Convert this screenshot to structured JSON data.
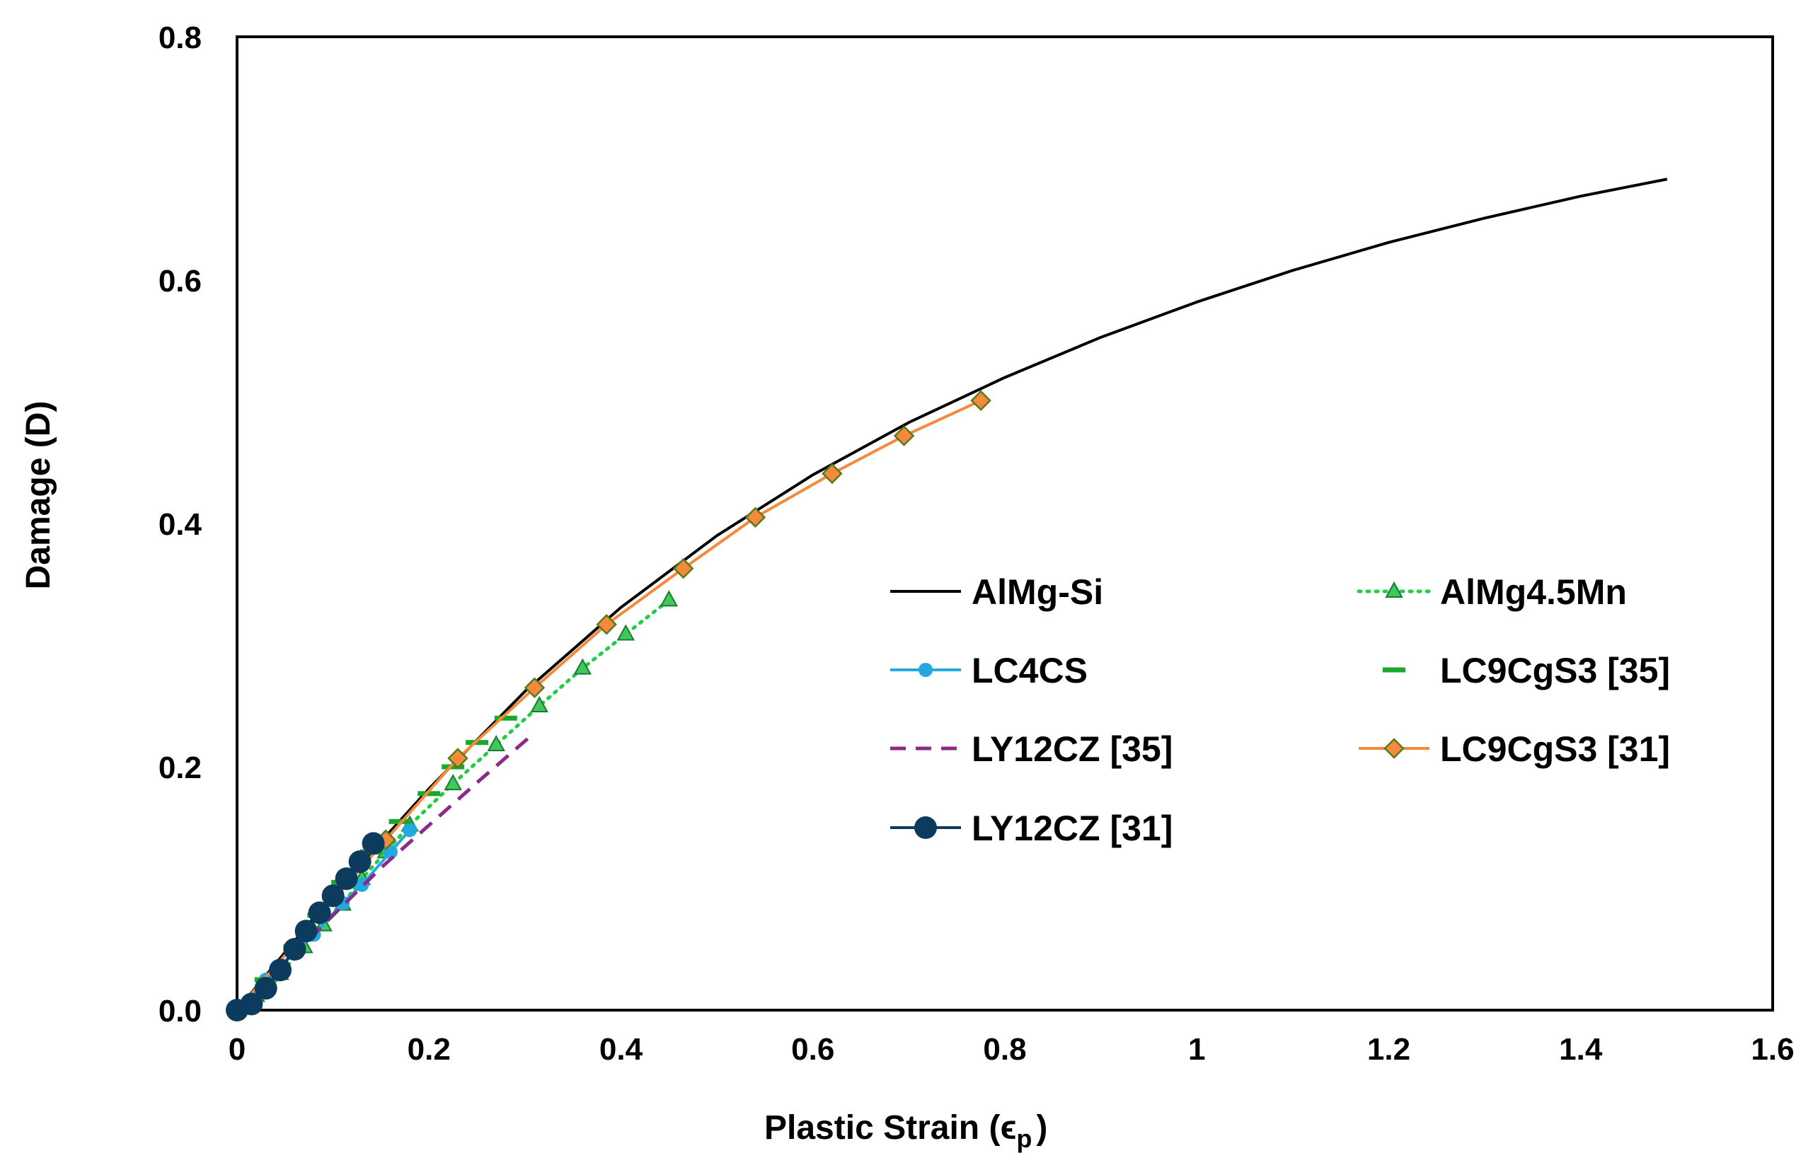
{
  "chart_data": {
    "type": "line",
    "title": "",
    "xlabel": "Plastic Strain (ϵ",
    "xlabel_sub": "p",
    "xlabel_close": ")",
    "ylabel": "Damage (D)",
    "xlim": [
      0,
      1.6
    ],
    "ylim": [
      0,
      0.8
    ],
    "xticks": [
      0,
      0.2,
      0.4,
      0.6,
      0.8,
      1,
      1.2,
      1.4,
      1.6
    ],
    "xtick_labels": [
      "0",
      "0.2",
      "0.4",
      "0.6",
      "0.8",
      "1",
      "1.2",
      "1.4",
      "1.6"
    ],
    "yticks": [
      0.0,
      0.2,
      0.4,
      0.6,
      0.8
    ],
    "ytick_labels": [
      "0.0",
      "0.2",
      "0.4",
      "0.6",
      "0.8"
    ],
    "grid": false,
    "legend_position": "center-right",
    "series": [
      {
        "name": "AlMg-Si",
        "color": "#000000",
        "line": "solid",
        "marker": "none",
        "x": [
          0,
          0.1,
          0.2,
          0.3,
          0.4,
          0.5,
          0.6,
          0.7,
          0.8,
          0.9,
          1.0,
          1.1,
          1.2,
          1.3,
          1.4,
          1.49
        ],
        "y": [
          0,
          0.095,
          0.182,
          0.262,
          0.331,
          0.39,
          0.44,
          0.483,
          0.52,
          0.553,
          0.582,
          0.608,
          0.631,
          0.651,
          0.669,
          0.683
        ]
      },
      {
        "name": "AlMg4.5Mn",
        "color": "#22cc44",
        "line": "dotted",
        "marker": "triangle",
        "x": [
          0,
          0.02,
          0.045,
          0.07,
          0.09,
          0.11,
          0.13,
          0.155,
          0.18,
          0.225,
          0.27,
          0.315,
          0.36,
          0.405,
          0.45
        ],
        "y": [
          0,
          0.012,
          0.03,
          0.052,
          0.07,
          0.087,
          0.108,
          0.13,
          0.152,
          0.186,
          0.218,
          0.25,
          0.281,
          0.309,
          0.337
        ]
      },
      {
        "name": "LC4CS",
        "color": "#22a9e0",
        "line": "solid",
        "marker": "circle",
        "x": [
          0,
          0.03,
          0.06,
          0.08,
          0.11,
          0.13,
          0.16,
          0.18
        ],
        "y": [
          0,
          0.025,
          0.048,
          0.062,
          0.088,
          0.103,
          0.13,
          0.148
        ]
      },
      {
        "name": "LC9CgS3 [35]",
        "color": "#1aa82a",
        "line": "none",
        "marker": "dash",
        "x": [
          0.03,
          0.06,
          0.085,
          0.11,
          0.14,
          0.17,
          0.2,
          0.225,
          0.25,
          0.28
        ],
        "y": [
          0.025,
          0.052,
          0.078,
          0.105,
          0.13,
          0.155,
          0.178,
          0.2,
          0.22,
          0.24
        ]
      },
      {
        "name": "LY12CZ [35]",
        "color": "#8b2a8b",
        "line": "dashed",
        "marker": "none",
        "x": [
          0,
          0.05,
          0.1,
          0.15,
          0.2,
          0.25,
          0.31
        ],
        "y": [
          0,
          0.038,
          0.078,
          0.117,
          0.152,
          0.187,
          0.228
        ]
      },
      {
        "name": "LC9CgS3 [31]",
        "color": "#f58a3c",
        "line": "solid",
        "marker": "diamond",
        "x": [
          0,
          0.155,
          0.23,
          0.31,
          0.385,
          0.465,
          0.54,
          0.62,
          0.695,
          0.775
        ],
        "y": [
          0,
          0.14,
          0.207,
          0.265,
          0.317,
          0.363,
          0.405,
          0.441,
          0.472,
          0.501
        ]
      },
      {
        "name": "LY12CZ [31]",
        "color": "#0d3b5e",
        "line": "solid",
        "marker": "bigcircle",
        "x": [
          0,
          0.015,
          0.03,
          0.045,
          0.06,
          0.072,
          0.086,
          0.1,
          0.114,
          0.128,
          0.142
        ],
        "y": [
          0,
          0.005,
          0.018,
          0.033,
          0.05,
          0.065,
          0.08,
          0.094,
          0.108,
          0.122,
          0.137
        ]
      }
    ]
  }
}
